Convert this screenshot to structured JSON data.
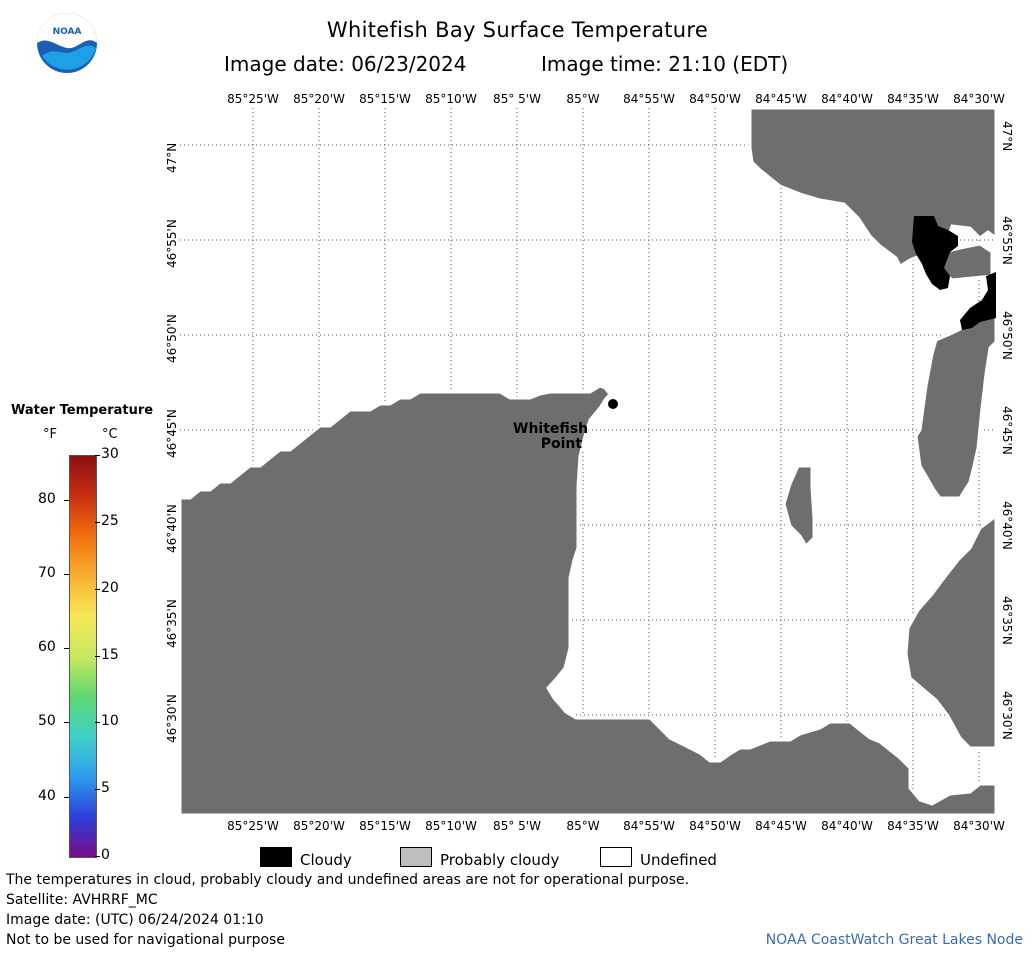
{
  "title": "Whitefish Bay Surface Temperature",
  "subtitle_date": "Image date: 06/23/2024",
  "subtitle_time": "Image time: 21:10 (EDT)",
  "logo_text": "NOAA",
  "lon_labels": [
    "85°25'W",
    "85°20'W",
    "85°15'W",
    "85°10'W",
    "85° 5'W",
    "85°W",
    "84°55'W",
    "84°50'W",
    "84°45'W",
    "84°40'W",
    "84°35'W",
    "84°30'W"
  ],
  "lat_labels": [
    "47°N",
    "46°55'N",
    "46°50'N",
    "46°45'N",
    "46°40'N",
    "46°35'N",
    "46°30'N"
  ],
  "place_label_1": "Whitefish",
  "place_label_2": "Point",
  "colorbar": {
    "title": "Water Temperature",
    "unit_f": "°F",
    "unit_c": "°C",
    "f_ticks": [
      "80",
      "70",
      "60",
      "50",
      "40"
    ],
    "c_ticks": [
      "30",
      "25",
      "20",
      "15",
      "10",
      "5",
      "0"
    ],
    "colors": [
      "#7a0a8a",
      "#2a3fd8",
      "#2f9cf0",
      "#3fd0c8",
      "#5fd870",
      "#c8e860",
      "#f8e858",
      "#f8b030",
      "#f07010",
      "#c83010",
      "#8a1010"
    ]
  },
  "legend": {
    "cloudy": "Cloudy",
    "probably_cloudy": "Probably cloudy",
    "undefined": "Undefined"
  },
  "footer": {
    "line1": "The temperatures in cloud, probably cloudy and undefined areas are not for operational purpose.",
    "line2": "Satellite: AVHRRF_MC",
    "line3": "Image date: (UTC) 06/24/2024  01:10",
    "line4": "Not to be used for navigational purpose",
    "credit": "NOAA CoastWatch Great Lakes Node"
  },
  "colors": {
    "land": "#6e6e6e",
    "cloud": "#000000",
    "water": "#ffffff",
    "credit": "#3a6bb0"
  }
}
